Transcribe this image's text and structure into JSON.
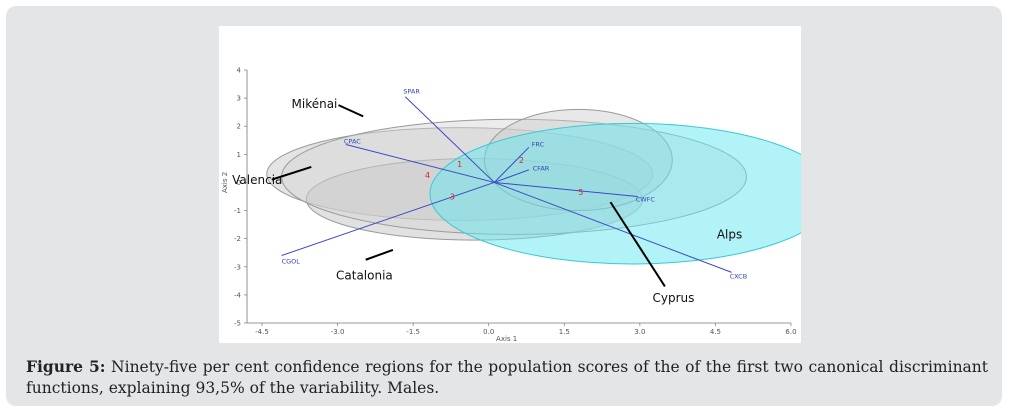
{
  "chart_data": {
    "type": "scatter",
    "subtype": "canonical-discriminant-biplot",
    "xlabel": "Axis 1",
    "ylabel": "Axis 2",
    "xlim": [
      -5.0,
      6.0
    ],
    "ylim": [
      -5,
      4
    ],
    "x_ticks": [
      "-4.5",
      "-3.0",
      "-1.5",
      "0.0",
      "1.5",
      "3.0",
      "4.5",
      "6.0"
    ],
    "y_ticks": [
      "4",
      "3",
      "2",
      "1",
      "0",
      "-1",
      "-2",
      "-3",
      "-4",
      "-5"
    ],
    "confidence_regions": [
      {
        "name": "Mikénai",
        "cx": -0.7,
        "cy": 0.3,
        "rx": 3.9,
        "ry": 1.65,
        "color": "#c4c4c4",
        "centroid_label": "4"
      },
      {
        "name": "Catalonia",
        "cx": -0.4,
        "cy": -0.6,
        "rx": 3.4,
        "ry": 1.45,
        "color": "#bcbcbc",
        "centroid_label": "3"
      },
      {
        "name": "Valencia",
        "cx": 0.4,
        "cy": 0.2,
        "rx": 4.7,
        "ry": 2.05,
        "color": "#d4d4d4",
        "centroid_label": "1"
      },
      {
        "name": "Alps",
        "cx": 1.7,
        "cy": 0.8,
        "rx": 1.9,
        "ry": 1.8,
        "color": "#cccccc",
        "centroid_label": "2"
      },
      {
        "name": "Cyprus",
        "cx": 2.8,
        "cy": -0.4,
        "rx": 4.1,
        "ry": 2.5,
        "color": "#66e8f0",
        "centroid_label": "5"
      }
    ],
    "centroid_points": [
      {
        "label": "4",
        "x": -1.35,
        "y": 0.15
      },
      {
        "label": "1",
        "x": -0.7,
        "y": 0.55
      },
      {
        "label": "2",
        "x": 0.55,
        "y": 0.7
      },
      {
        "label": "3",
        "x": -0.85,
        "y": -0.6
      },
      {
        "label": "5",
        "x": 1.75,
        "y": -0.45
      }
    ],
    "vectors": [
      {
        "label": "SPAR",
        "x": -1.8,
        "y": 3.05
      },
      {
        "label": "CPAC",
        "x": -3.0,
        "y": 1.35
      },
      {
        "label": "FRC",
        "x": 0.7,
        "y": 1.25
      },
      {
        "label": "CFAR",
        "x": 0.7,
        "y": 0.45
      },
      {
        "label": "CWFC",
        "x": 2.9,
        "y": -0.5
      },
      {
        "label": "CXCB",
        "x": 4.8,
        "y": -3.2
      },
      {
        "label": "CGOL",
        "x": -4.3,
        "y": -2.6
      }
    ],
    "population_labels": [
      "Mikénai",
      "Valencia",
      "Catalonia",
      "Alps",
      "Cyprus"
    ],
    "grid": false,
    "legend": "none"
  },
  "caption": {
    "label": "Figure 5:",
    "text": " Ninety-five per cent confidence regions for the population scores of the of the first two canonical discriminant functions, explaining 93,5% of the variability. Males."
  },
  "colors": {
    "vector": "#3a48c8",
    "centroid": "#dd2222",
    "cyprus_fill": "#66e8f0",
    "grey_fill": "#c8c8c8",
    "background": "#e3e5e6"
  }
}
